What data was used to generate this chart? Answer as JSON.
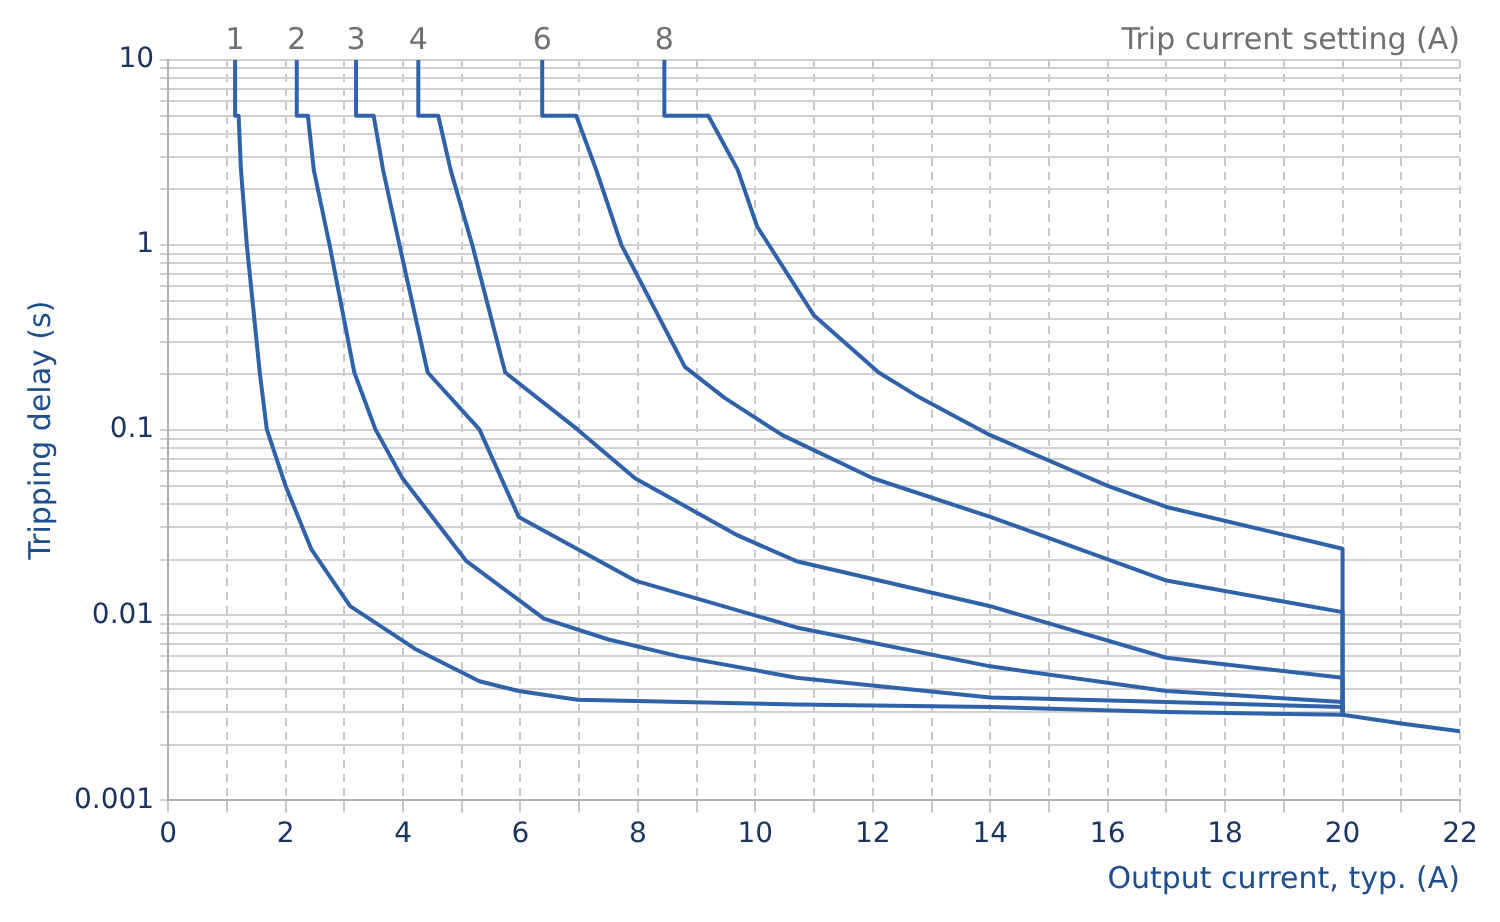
{
  "chart_data": {
    "type": "line",
    "xlabel": "Output current, typ. (A)",
    "ylabel": "Tripping delay (s)",
    "legend_title": "Trip current setting (A)",
    "series": [
      {
        "name": "1",
        "color": "#2f62a8",
        "x": [
          1.14,
          1.14,
          1.2,
          1.24,
          1.34,
          1.56,
          1.68,
          2.0,
          2.44,
          2.87,
          3.1,
          4.2,
          5.3,
          5.97,
          6.97,
          10.7,
          14,
          17,
          20,
          21,
          22
        ],
        "values": [
          10,
          5,
          5,
          2.55,
          1.0,
          0.205,
          0.101,
          0.05,
          0.0227,
          0.0143,
          0.0112,
          0.0066,
          0.0044,
          0.0039,
          0.0035,
          0.0033,
          0.0032,
          0.003,
          0.0029,
          0.0026,
          0.00236
        ]
      },
      {
        "name": "2",
        "color": "#2f62a8",
        "x": [
          2.19,
          2.19,
          2.38,
          2.48,
          2.75,
          3.17,
          3.53,
          3.99,
          5.08,
          6.4,
          7.5,
          8.7,
          10.7,
          14,
          17,
          20,
          20
        ],
        "values": [
          10,
          5,
          5,
          2.55,
          1.0,
          0.205,
          0.101,
          0.055,
          0.0196,
          0.0096,
          0.0074,
          0.006,
          0.0046,
          0.0036,
          0.0034,
          0.0032,
          0.0029
        ]
      },
      {
        "name": "3",
        "color": "#2f62a8",
        "x": [
          3.2,
          3.2,
          3.5,
          3.66,
          3.94,
          4.42,
          5.3,
          5.97,
          7.95,
          10.7,
          14,
          17,
          20,
          20
        ],
        "values": [
          10,
          5,
          5,
          2.55,
          1.0,
          0.205,
          0.101,
          0.034,
          0.0154,
          0.0086,
          0.0053,
          0.0039,
          0.0034,
          0.0029
        ]
      },
      {
        "name": "4",
        "color": "#2f62a8",
        "x": [
          4.26,
          4.26,
          4.6,
          4.81,
          5.18,
          5.74,
          6.97,
          7.95,
          9.7,
          10.7,
          14,
          17,
          20,
          20
        ],
        "values": [
          10,
          5,
          5,
          2.55,
          1.0,
          0.205,
          0.101,
          0.055,
          0.027,
          0.0196,
          0.0112,
          0.0059,
          0.0046,
          0.0029
        ]
      },
      {
        "name": "6",
        "color": "#2f62a8",
        "x": [
          6.37,
          6.37,
          6.95,
          7.29,
          7.72,
          8.8,
          9.47,
          10.46,
          12,
          14,
          17,
          20,
          20
        ],
        "values": [
          10,
          5,
          5,
          2.55,
          1.0,
          0.22,
          0.15,
          0.094,
          0.055,
          0.034,
          0.0154,
          0.0104,
          0.0029
        ]
      },
      {
        "name": "8",
        "color": "#2f62a8",
        "x": [
          8.45,
          8.45,
          9.2,
          9.7,
          10.03,
          11.0,
          12.1,
          12.8,
          14,
          16,
          17,
          20,
          20
        ],
        "values": [
          10,
          5,
          5,
          2.55,
          1.26,
          0.416,
          0.205,
          0.15,
          0.094,
          0.05,
          0.0385,
          0.0229,
          0.0029
        ]
      }
    ],
    "log": "y",
    "xlim": [
      0,
      22
    ],
    "ylim": [
      0.001,
      10
    ],
    "xticks": [
      0,
      {
        "value": 1,
        "label": null
      },
      2,
      {
        "value": 3,
        "label": null
      },
      4,
      {
        "value": 5,
        "label": null
      },
      6,
      {
        "value": 7,
        "label": null
      },
      8,
      {
        "value": 9,
        "label": null
      },
      10,
      {
        "value": 11,
        "label": null
      },
      12,
      {
        "value": 13,
        "label": null
      },
      14,
      {
        "value": 15,
        "label": null
      },
      16,
      {
        "value": 17,
        "label": null
      },
      18,
      {
        "value": 19,
        "label": null
      },
      20,
      {
        "value": 21,
        "label": null
      },
      22
    ],
    "yticks": [
      0.001,
      {
        "value": 0.002,
        "label": null
      },
      {
        "value": 0.003,
        "label": null
      },
      {
        "value": 0.004,
        "label": null
      },
      {
        "value": 0.005,
        "label": null
      },
      {
        "value": 0.006,
        "label": null
      },
      {
        "value": 0.007,
        "label": null
      },
      {
        "value": 0.008,
        "label": null
      },
      {
        "value": 0.009,
        "label": null
      },
      0.01,
      {
        "value": 0.02,
        "label": null
      },
      {
        "value": 0.03,
        "label": null
      },
      {
        "value": 0.04,
        "label": null
      },
      {
        "value": 0.05,
        "label": null
      },
      {
        "value": 0.06,
        "label": null
      },
      {
        "value": 0.07,
        "label": null
      },
      {
        "value": 0.08,
        "label": null
      },
      {
        "value": 0.09,
        "label": null
      },
      0.1,
      {
        "value": 0.2,
        "label": null
      },
      {
        "value": 0.3,
        "label": null
      },
      {
        "value": 0.4,
        "label": null
      },
      {
        "value": 0.5,
        "label": null
      },
      {
        "value": 0.6,
        "label": null
      },
      {
        "value": 0.7,
        "label": null
      },
      {
        "value": 0.8,
        "label": null
      },
      {
        "value": 0.9,
        "label": null
      },
      1,
      {
        "value": 2,
        "label": null
      },
      {
        "value": 3,
        "label": null
      },
      {
        "value": 4,
        "label": null
      },
      {
        "value": 5,
        "label": null
      },
      {
        "value": 6,
        "label": null
      },
      {
        "value": 7,
        "label": null
      },
      {
        "value": 8,
        "label": null
      },
      {
        "value": 9,
        "label": null
      },
      10
    ],
    "grid": true,
    "legend": false,
    "marker": "none",
    "line_style": "solid"
  }
}
